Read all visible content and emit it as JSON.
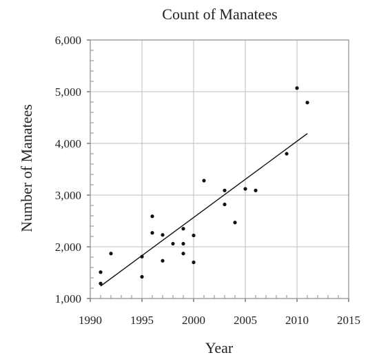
{
  "chart_data": {
    "type": "scatter",
    "title": "Count of Manatees",
    "xlabel": "Year",
    "ylabel": "Number of Manatees",
    "xlim": [
      1990,
      2015
    ],
    "ylim": [
      1000,
      6000
    ],
    "x_ticks": [
      1990,
      1995,
      2000,
      2005,
      2010,
      2015
    ],
    "y_ticks": [
      1000,
      2000,
      3000,
      4000,
      5000,
      6000
    ],
    "x_tick_labels": [
      "1990",
      "1995",
      "2000",
      "2005",
      "2010",
      "2015"
    ],
    "y_tick_labels": [
      "1,000",
      "2,000",
      "3,000",
      "4,000",
      "5,000",
      "6,000"
    ],
    "grid": true,
    "legend": "none",
    "points": [
      {
        "x": 1991,
        "y": 1510
      },
      {
        "x": 1991,
        "y": 1290
      },
      {
        "x": 1992,
        "y": 1870
      },
      {
        "x": 1995,
        "y": 1810
      },
      {
        "x": 1995,
        "y": 1420
      },
      {
        "x": 1996,
        "y": 2590
      },
      {
        "x": 1996,
        "y": 2270
      },
      {
        "x": 1997,
        "y": 2230
      },
      {
        "x": 1997,
        "y": 1730
      },
      {
        "x": 1998,
        "y": 2060
      },
      {
        "x": 1999,
        "y": 2350
      },
      {
        "x": 1999,
        "y": 2060
      },
      {
        "x": 1999,
        "y": 1870
      },
      {
        "x": 2000,
        "y": 2220
      },
      {
        "x": 2000,
        "y": 1700
      },
      {
        "x": 2001,
        "y": 3280
      },
      {
        "x": 2003,
        "y": 3090
      },
      {
        "x": 2003,
        "y": 2820
      },
      {
        "x": 2004,
        "y": 2470
      },
      {
        "x": 2005,
        "y": 3120
      },
      {
        "x": 2006,
        "y": 3090
      },
      {
        "x": 2009,
        "y": 3800
      },
      {
        "x": 2010,
        "y": 5070
      },
      {
        "x": 2011,
        "y": 4790
      }
    ],
    "trend_line": {
      "x": [
        1991,
        2011
      ],
      "y": [
        1240,
        4190
      ]
    }
  }
}
